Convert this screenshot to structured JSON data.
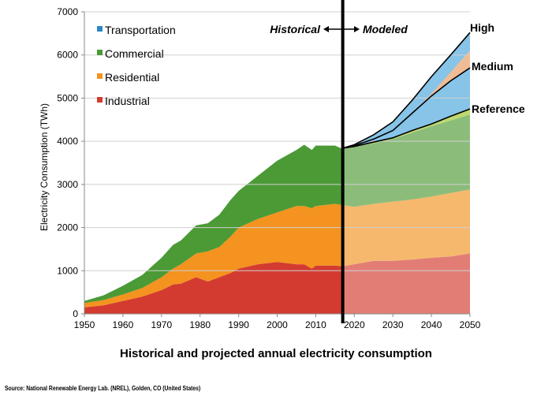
{
  "chart_data": {
    "type": "area",
    "title": "Historical and projected annual electricity consumption",
    "ylabel": "Electricity Consumption (TWh)",
    "xlabel": "",
    "xlim": [
      1950,
      2050
    ],
    "ylim": [
      0,
      7000
    ],
    "x_ticks": [
      "1950",
      "1960",
      "1970",
      "1980",
      "1990",
      "2000",
      "2010",
      "2020",
      "2030",
      "2040",
      "2050"
    ],
    "y_ticks": [
      "0",
      "1000",
      "2000",
      "3000",
      "4000",
      "5000",
      "6000",
      "7000"
    ],
    "grid": "horizontal",
    "legend_position": "top-left",
    "divider_year": 2017,
    "historical_label": "Historical",
    "modeled_label": "Modeled",
    "colors": {
      "Industrial": "#d33b31",
      "Residential": "#f4931f",
      "Commercial": "#4b9a36",
      "Transportation": "#2e86c8",
      "Industrial_proj": "#e27d76",
      "Residential_proj": "#f6b86d",
      "Commercial_proj": "#8cbc7a",
      "Transportation_proj": "#87c4e8",
      "Medium_band": "#f0bc96",
      "Reference_band": "#bdd86e"
    },
    "series": [
      {
        "name": "Industrial",
        "x": [
          1950,
          1955,
          1960,
          1965,
          1970,
          1973,
          1975,
          1979,
          1982,
          1985,
          1988,
          1990,
          1995,
          2000,
          2005,
          2007,
          2009,
          2010,
          2015,
          2017,
          2020,
          2025,
          2030,
          2035,
          2040,
          2045,
          2050
        ],
        "values": [
          150,
          200,
          300,
          400,
          550,
          680,
          700,
          850,
          750,
          850,
          950,
          1050,
          1150,
          1200,
          1150,
          1150,
          1050,
          1120,
          1120,
          1100,
          1150,
          1230,
          1230,
          1260,
          1300,
          1330,
          1400
        ]
      },
      {
        "name": "Residential",
        "x": [
          1950,
          1955,
          1960,
          1965,
          1970,
          1973,
          1975,
          1979,
          1982,
          1985,
          1988,
          1990,
          1995,
          2000,
          2005,
          2007,
          2009,
          2010,
          2015,
          2017,
          2020,
          2025,
          2030,
          2035,
          2040,
          2045,
          2050
        ],
        "values": [
          250,
          320,
          450,
          600,
          850,
          1050,
          1150,
          1400,
          1450,
          1550,
          1800,
          2000,
          2200,
          2350,
          2500,
          2500,
          2450,
          2500,
          2550,
          2520,
          2480,
          2550,
          2600,
          2650,
          2720,
          2800,
          2880
        ]
      },
      {
        "name": "Commercial",
        "x": [
          1950,
          1955,
          1960,
          1965,
          1970,
          1973,
          1975,
          1979,
          1982,
          1985,
          1988,
          1990,
          1995,
          2000,
          2005,
          2007,
          2009,
          2010,
          2015,
          2017,
          2020,
          2025,
          2030,
          2035,
          2040,
          2045,
          2050
        ],
        "values": [
          300,
          430,
          650,
          900,
          1300,
          1600,
          1700,
          2050,
          2100,
          2300,
          2650,
          2850,
          3200,
          3550,
          3800,
          3920,
          3800,
          3900,
          3900,
          3820,
          3880,
          3950,
          4050,
          4200,
          4350,
          4480,
          4620
        ]
      },
      {
        "name": "Transportation",
        "x": [
          2017,
          2020,
          2025,
          2030,
          2035,
          2040,
          2045,
          2050
        ],
        "values": [
          3840,
          3900,
          4050,
          4250,
          4650,
          5100,
          5600,
          6100
        ]
      }
    ],
    "scenarios": [
      {
        "name": "High",
        "x": [
          2017,
          2020,
          2025,
          2030,
          2035,
          2040,
          2045,
          2050
        ],
        "values": [
          3840,
          3920,
          4150,
          4450,
          4950,
          5500,
          6000,
          6520
        ]
      },
      {
        "name": "Medium",
        "x": [
          2017,
          2020,
          2025,
          2030,
          2035,
          2040,
          2045,
          2050
        ],
        "values": [
          3840,
          3900,
          4050,
          4250,
          4650,
          5050,
          5400,
          5700
        ]
      },
      {
        "name": "Reference",
        "x": [
          2017,
          2020,
          2025,
          2030,
          2035,
          2040,
          2045,
          2050
        ],
        "values": [
          3840,
          3880,
          3980,
          4080,
          4250,
          4400,
          4580,
          4750
        ]
      }
    ],
    "legend": [
      "Transportation",
      "Commercial",
      "Residential",
      "Industrial"
    ]
  },
  "caption": "Historical and projected annual electricity consumption",
  "source": "Source: National Renewable Energy Lab. (NREL), Golden, CO (United States)"
}
